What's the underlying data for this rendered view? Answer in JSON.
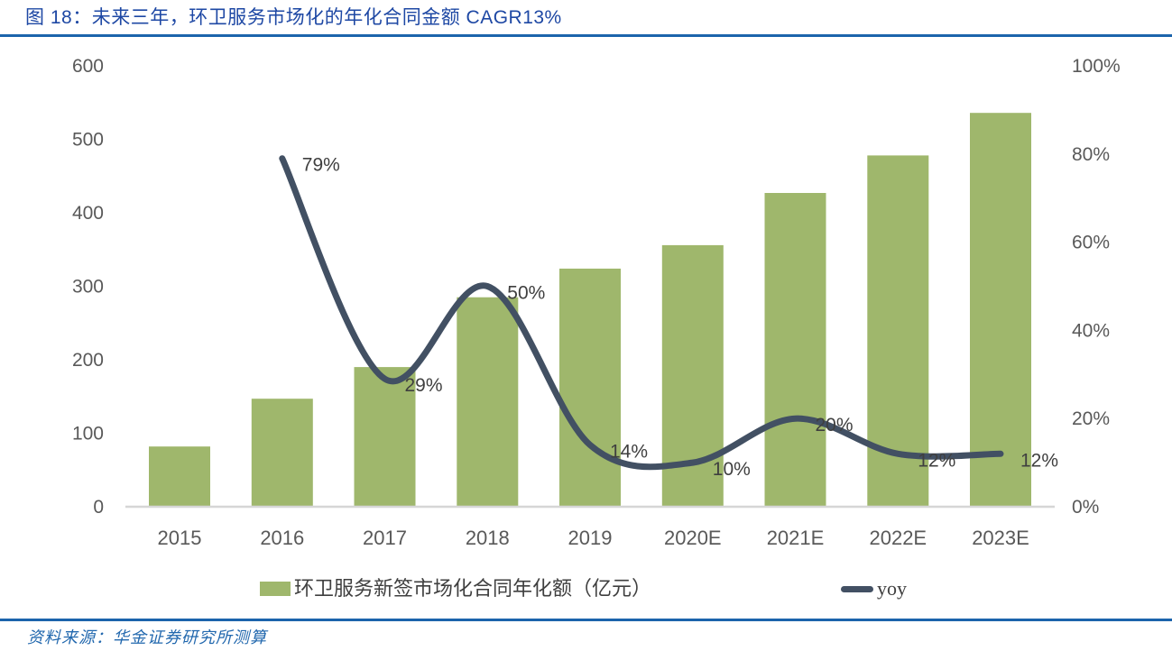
{
  "title": "图 18：未来三年，环卫服务市场化的年化合同金额 CAGR13%",
  "source": "资料来源：华金证券研究所测算",
  "legend": {
    "bar_label": "环卫服务新签市场化合同年化额（亿元）",
    "line_label": "yoy"
  },
  "colors": {
    "bar": "#9FB76C",
    "line": "#425063",
    "title_blue": "#1E48A4",
    "rule_blue": "#1C64AC",
    "source_blue": "#2268AE",
    "axis_text": "#595959",
    "data_label_text": "#3F3F3F",
    "baseline": "#D6D6D6"
  },
  "chart_data": {
    "type": "bar+line",
    "categories": [
      "2015",
      "2016",
      "2017",
      "2018",
      "2019",
      "2020E",
      "2021E",
      "2022E",
      "2023E"
    ],
    "series": [
      {
        "name": "环卫服务新签市场化合同年化额（亿元）",
        "type": "bar",
        "axis": "left",
        "values": [
          82,
          147,
          190,
          285,
          324,
          356,
          427,
          478,
          536
        ]
      },
      {
        "name": "yoy",
        "type": "line",
        "axis": "right",
        "values_pct": [
          null,
          79,
          29,
          50,
          14,
          10,
          20,
          12,
          12
        ],
        "point_labels": [
          "",
          "79%",
          "29%",
          "50%",
          "14%",
          "10%",
          "20%",
          "12%",
          "12%"
        ]
      }
    ],
    "left_axis": {
      "min": 0,
      "max": 600,
      "step": 100,
      "ticks": [
        "0",
        "100",
        "200",
        "300",
        "400",
        "500",
        "600"
      ]
    },
    "right_axis": {
      "min": 0,
      "max": 100,
      "step": 20,
      "ticks": [
        "0%",
        "20%",
        "40%",
        "60%",
        "80%",
        "100%"
      ]
    },
    "grid": false,
    "line_smooth": true,
    "legend_position": "bottom",
    "title": "图 18：未来三年，环卫服务市场化的年化合同金额 CAGR13%"
  }
}
